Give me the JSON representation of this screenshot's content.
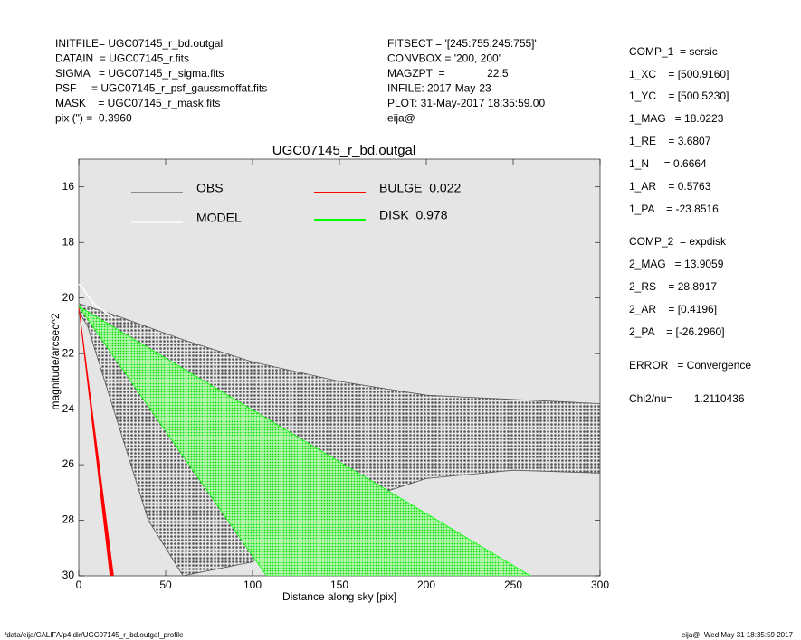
{
  "chart_data": {
    "type": "scatter",
    "title": "UGC07145_r_bd.outgal",
    "x_label": "Distance along sky [pix]",
    "y_label": "magnitude/arcsec^2",
    "info_left": [
      "INITFILE= UGC07145_r_bd.outgal",
      "DATAIN  = UGC07145_r.fits",
      "SIGMA   = UGC07145_r_sigma.fits",
      "PSF     = UGC07145_r_psf_gaussmoffat.fits",
      "MASK    = UGC07145_r_mask.fits",
      "pix (\") =  0.3960"
    ],
    "info_middle": [
      "FITSECT = '[245:755,245:755]'",
      "CONVBOX = '200, 200'",
      "MAGZPT  =              22.5",
      "INFILE: 2017-May-23",
      "PLOT: 31-May-2017 18:35:59.00",
      "eija@"
    ],
    "info_right": [
      "COMP_1  = sersic",
      "1_XC    = [500.9160]",
      "1_YC    = [500.5230]",
      "1_MAG   = 18.0223",
      "1_RE    = 3.6807",
      "1_N     = 0.6664",
      "1_AR    = 0.5763",
      "1_PA    = -23.8516",
      "COMP_2  = expdisk",
      "2_MAG   = 13.9059",
      "2_RS    = 28.8917",
      "2_AR    = [0.4196]",
      "2_PA    = [-26.2960]",
      "ERROR   = Convergence",
      "Chi2/nu=       1.2110436"
    ],
    "footer_left": "/data/eija/CALIFA/p4.dir/UGC07145_r_bd.outgal_profile",
    "footer_right": "eija@  Wed May 31 18:35:59 2017",
    "xlim": [
      0,
      300
    ],
    "ylim": [
      15,
      30
    ],
    "y_inverted": true,
    "xticks": [
      0,
      50,
      100,
      150,
      200,
      250,
      300
    ],
    "yticks": [
      16,
      18,
      20,
      22,
      24,
      26,
      28,
      30
    ],
    "series": [
      {
        "name": "OBS",
        "color": "#555555",
        "x": [
          0,
          20,
          60,
          100,
          150,
          200,
          300,
          300,
          250,
          200,
          150,
          120,
          100,
          60,
          40,
          20,
          5,
          0
        ],
        "values": [
          20.2,
          20.6,
          21.5,
          22.3,
          23.0,
          23.5,
          23.8,
          26.3,
          26.2,
          26.5,
          27.5,
          28.5,
          29.5,
          30,
          28,
          24,
          21,
          20.5
        ]
      },
      {
        "name": "MODEL",
        "color": "#ffffff",
        "x": [
          0,
          2,
          5,
          10,
          20
        ],
        "values": [
          19.5,
          19.6,
          19.9,
          20.3,
          20.7
        ]
      },
      {
        "name": "BULGE  0.022",
        "color": "#ff0000",
        "x": [
          0,
          18,
          20
        ],
        "values": [
          20.3,
          30,
          30
        ]
      },
      {
        "name": "DISK  0.978",
        "color": "#00ff00",
        "x": [
          0,
          260,
          108
        ],
        "values": [
          20.3,
          30,
          30
        ]
      }
    ]
  }
}
